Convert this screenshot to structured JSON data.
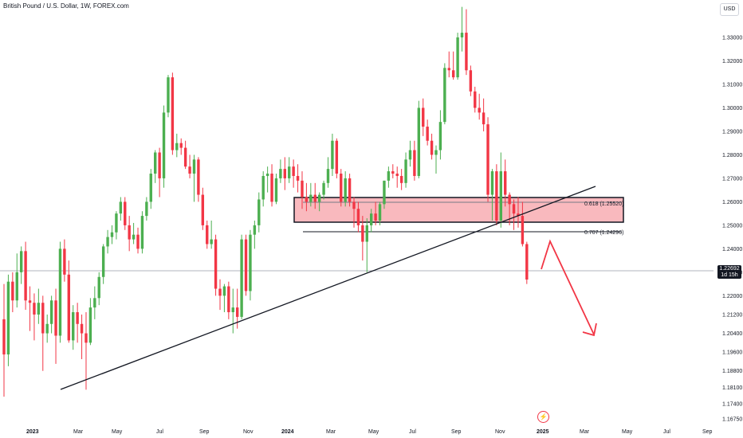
{
  "header": {
    "symbol_title": "British Pound / U.S. Dollar, 1W, FOREX.com",
    "currency": "USD"
  },
  "price_scale": {
    "ticks": [
      "1.33000",
      "1.32000",
      "1.31000",
      "1.30000",
      "1.29000",
      "1.28000",
      "1.27000",
      "1.26000",
      "1.25000",
      "1.24000",
      "1.23000",
      "1.22000",
      "1.21200",
      "1.20400",
      "1.19600",
      "1.18800",
      "1.18100",
      "1.17400",
      "1.16750"
    ]
  },
  "time_axis": {
    "labels": [
      {
        "text": "2023",
        "bold": true
      },
      {
        "text": "Mar",
        "bold": false
      },
      {
        "text": "May",
        "bold": false
      },
      {
        "text": "Jul",
        "bold": false
      },
      {
        "text": "Sep",
        "bold": false
      },
      {
        "text": "Nov",
        "bold": false
      },
      {
        "text": "2024",
        "bold": true
      },
      {
        "text": "Mar",
        "bold": false
      },
      {
        "text": "May",
        "bold": false
      },
      {
        "text": "Jul",
        "bold": false
      },
      {
        "text": "Sep",
        "bold": false
      },
      {
        "text": "Nov",
        "bold": false
      },
      {
        "text": "2025",
        "bold": true
      },
      {
        "text": "Mar",
        "bold": false
      },
      {
        "text": "May",
        "bold": false
      },
      {
        "text": "Jul",
        "bold": false
      },
      {
        "text": "Sep",
        "bold": false
      }
    ]
  },
  "last_price": {
    "value": "1.22692",
    "countdown": "1d 15h"
  },
  "annotations": {
    "fib_618": "0.618 (1.25520)",
    "fib_707": "0.707 (1.24296)"
  },
  "colors": {
    "up": "#4caf50",
    "down": "#f23645",
    "zone_fill": "#f7a1a8",
    "trendline": "#131722",
    "projection": "#f23645",
    "axis_text": "#131722"
  },
  "event_icon": "lightning-icon",
  "chart_data": {
    "type": "candlestick",
    "interval": "1W",
    "symbol": "British Pound / U.S. Dollar",
    "source": "FOREX.com",
    "ylim": [
      1.1635,
      1.3405
    ],
    "annotations": [
      "0.618 (1.25520)",
      "0.707 (1.24296)"
    ],
    "last_price": 1.22692,
    "candles": [
      [
        1.21,
        1.225,
        1.177,
        1.195
      ],
      [
        1.195,
        1.229,
        1.19,
        1.226
      ],
      [
        1.226,
        1.23,
        1.213,
        1.218
      ],
      [
        1.218,
        1.238,
        1.215,
        1.23
      ],
      [
        1.23,
        1.241,
        1.225,
        1.239
      ],
      [
        1.239,
        1.243,
        1.214,
        1.218
      ],
      [
        1.218,
        1.224,
        1.205,
        1.217
      ],
      [
        1.217,
        1.221,
        1.201,
        1.212
      ],
      [
        1.212,
        1.223,
        1.208,
        1.217
      ],
      [
        1.217,
        1.22,
        1.188,
        1.204
      ],
      [
        1.204,
        1.212,
        1.2,
        1.208
      ],
      [
        1.208,
        1.22,
        1.204,
        1.218
      ],
      [
        1.218,
        1.223,
        1.191,
        1.203
      ],
      [
        1.203,
        1.243,
        1.2,
        1.24
      ],
      [
        1.24,
        1.244,
        1.226,
        1.229
      ],
      [
        1.229,
        1.235,
        1.2,
        1.201
      ],
      [
        1.201,
        1.216,
        1.197,
        1.213
      ],
      [
        1.213,
        1.217,
        1.2,
        1.208
      ],
      [
        1.208,
        1.212,
        1.193,
        1.204
      ],
      [
        1.204,
        1.213,
        1.18,
        1.2
      ],
      [
        1.2,
        1.219,
        1.199,
        1.215
      ],
      [
        1.215,
        1.224,
        1.21,
        1.219
      ],
      [
        1.219,
        1.23,
        1.216,
        1.228
      ],
      [
        1.228,
        1.242,
        1.225,
        1.241
      ],
      [
        1.241,
        1.248,
        1.238,
        1.245
      ],
      [
        1.245,
        1.25,
        1.242,
        1.247
      ],
      [
        1.247,
        1.256,
        1.244,
        1.255
      ],
      [
        1.255,
        1.262,
        1.252,
        1.26
      ],
      [
        1.26,
        1.262,
        1.248,
        1.25
      ],
      [
        1.25,
        1.254,
        1.239,
        1.244
      ],
      [
        1.244,
        1.251,
        1.242,
        1.246
      ],
      [
        1.246,
        1.249,
        1.238,
        1.24
      ],
      [
        1.24,
        1.256,
        1.238,
        1.254
      ],
      [
        1.254,
        1.262,
        1.252,
        1.26
      ],
      [
        1.26,
        1.274,
        1.257,
        1.272
      ],
      [
        1.272,
        1.282,
        1.268,
        1.281
      ],
      [
        1.281,
        1.283,
        1.262,
        1.27
      ],
      [
        1.27,
        1.301,
        1.266,
        1.298
      ],
      [
        1.298,
        1.314,
        1.296,
        1.313
      ],
      [
        1.313,
        1.315,
        1.28,
        1.282
      ],
      [
        1.282,
        1.289,
        1.279,
        1.285
      ],
      [
        1.285,
        1.287,
        1.28,
        1.283
      ],
      [
        1.283,
        1.286,
        1.274,
        1.275
      ],
      [
        1.275,
        1.28,
        1.27,
        1.272
      ],
      [
        1.272,
        1.28,
        1.26,
        1.278
      ],
      [
        1.278,
        1.279,
        1.26,
        1.263
      ],
      [
        1.263,
        1.266,
        1.248,
        1.25
      ],
      [
        1.25,
        1.252,
        1.24,
        1.242
      ],
      [
        1.242,
        1.252,
        1.24,
        1.244
      ],
      [
        1.244,
        1.246,
        1.22,
        1.223
      ],
      [
        1.223,
        1.227,
        1.214,
        1.22
      ],
      [
        1.22,
        1.225,
        1.213,
        1.224
      ],
      [
        1.224,
        1.226,
        1.21,
        1.213
      ],
      [
        1.213,
        1.223,
        1.204,
        1.215
      ],
      [
        1.215,
        1.223,
        1.206,
        1.211
      ],
      [
        1.211,
        1.246,
        1.21,
        1.244
      ],
      [
        1.244,
        1.246,
        1.22,
        1.222
      ],
      [
        1.222,
        1.248,
        1.218,
        1.246
      ],
      [
        1.246,
        1.252,
        1.24,
        1.25
      ],
      [
        1.25,
        1.264,
        1.247,
        1.261
      ],
      [
        1.261,
        1.273,
        1.258,
        1.271
      ],
      [
        1.271,
        1.275,
        1.264,
        1.272
      ],
      [
        1.272,
        1.276,
        1.258,
        1.26
      ],
      [
        1.26,
        1.272,
        1.259,
        1.27
      ],
      [
        1.27,
        1.278,
        1.268,
        1.274
      ],
      [
        1.274,
        1.279,
        1.265,
        1.27
      ],
      [
        1.27,
        1.279,
        1.268,
        1.275
      ],
      [
        1.275,
        1.278,
        1.266,
        1.271
      ],
      [
        1.271,
        1.276,
        1.264,
        1.269
      ],
      [
        1.269,
        1.273,
        1.257,
        1.262
      ],
      [
        1.262,
        1.268,
        1.256,
        1.26
      ],
      [
        1.26,
        1.268,
        1.258,
        1.263
      ],
      [
        1.263,
        1.268,
        1.257,
        1.26
      ],
      [
        1.26,
        1.264,
        1.256,
        1.263
      ],
      [
        1.263,
        1.269,
        1.261,
        1.268
      ],
      [
        1.268,
        1.279,
        1.266,
        1.274
      ],
      [
        1.274,
        1.289,
        1.271,
        1.286
      ],
      [
        1.286,
        1.287,
        1.27,
        1.272
      ],
      [
        1.272,
        1.274,
        1.258,
        1.26
      ],
      [
        1.26,
        1.273,
        1.258,
        1.27
      ],
      [
        1.27,
        1.272,
        1.258,
        1.26
      ],
      [
        1.26,
        1.262,
        1.249,
        1.257
      ],
      [
        1.257,
        1.26,
        1.247,
        1.25
      ],
      [
        1.25,
        1.254,
        1.235,
        1.243
      ],
      [
        1.243,
        1.253,
        1.23,
        1.25
      ],
      [
        1.25,
        1.257,
        1.247,
        1.255
      ],
      [
        1.255,
        1.26,
        1.25,
        1.252
      ],
      [
        1.252,
        1.26,
        1.25,
        1.259
      ],
      [
        1.259,
        1.269,
        1.257,
        1.269
      ],
      [
        1.269,
        1.275,
        1.266,
        1.273
      ],
      [
        1.273,
        1.276,
        1.27,
        1.272
      ],
      [
        1.272,
        1.275,
        1.266,
        1.271
      ],
      [
        1.271,
        1.274,
        1.265,
        1.268
      ],
      [
        1.268,
        1.281,
        1.266,
        1.278
      ],
      [
        1.278,
        1.286,
        1.275,
        1.282
      ],
      [
        1.282,
        1.286,
        1.269,
        1.271
      ],
      [
        1.271,
        1.303,
        1.27,
        1.3
      ],
      [
        1.3,
        1.304,
        1.288,
        1.292
      ],
      [
        1.292,
        1.295,
        1.284,
        1.286
      ],
      [
        1.286,
        1.289,
        1.278,
        1.28
      ],
      [
        1.28,
        1.284,
        1.272,
        1.282
      ],
      [
        1.282,
        1.299,
        1.278,
        1.294
      ],
      [
        1.294,
        1.319,
        1.293,
        1.317
      ],
      [
        1.317,
        1.324,
        1.313,
        1.316
      ],
      [
        1.316,
        1.324,
        1.312,
        1.313
      ],
      [
        1.313,
        1.332,
        1.312,
        1.33
      ],
      [
        1.33,
        1.343,
        1.324,
        1.332
      ],
      [
        1.332,
        1.342,
        1.314,
        1.316
      ],
      [
        1.316,
        1.318,
        1.305,
        1.307
      ],
      [
        1.307,
        1.309,
        1.298,
        1.3
      ],
      [
        1.3,
        1.306,
        1.295,
        1.298
      ],
      [
        1.298,
        1.304,
        1.29,
        1.293
      ],
      [
        1.293,
        1.296,
        1.26,
        1.263
      ],
      [
        1.263,
        1.274,
        1.252,
        1.273
      ],
      [
        1.273,
        1.276,
        1.25,
        1.252
      ],
      [
        1.252,
        1.281,
        1.249,
        1.273
      ],
      [
        1.273,
        1.278,
        1.258,
        1.263
      ],
      [
        1.263,
        1.264,
        1.25,
        1.259
      ],
      [
        1.259,
        1.261,
        1.248,
        1.255
      ],
      [
        1.255,
        1.262,
        1.249,
        1.254
      ],
      [
        1.254,
        1.26,
        1.241,
        1.242
      ],
      [
        1.242,
        1.243,
        1.225,
        1.2269
      ]
    ]
  }
}
